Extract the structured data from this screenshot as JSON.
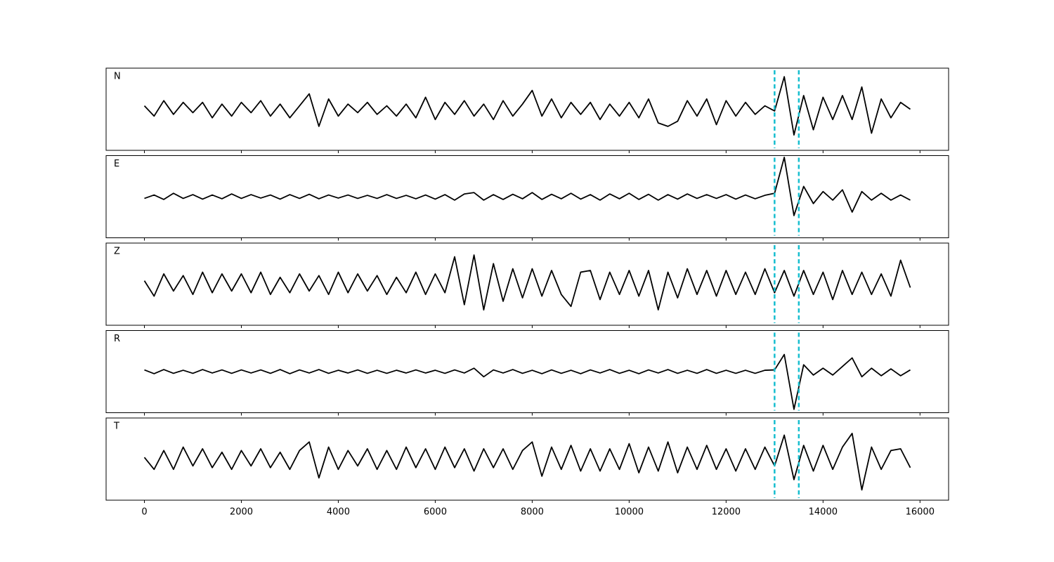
{
  "chart_data": {
    "type": "line",
    "x": [
      0,
      200,
      400,
      600,
      800,
      1000,
      1200,
      1400,
      1600,
      1800,
      2000,
      2200,
      2400,
      2600,
      2800,
      3000,
      3200,
      3400,
      3600,
      3800,
      4000,
      4200,
      4400,
      4600,
      4800,
      5000,
      5200,
      5400,
      5600,
      5800,
      6000,
      6200,
      6400,
      6600,
      6800,
      7000,
      7200,
      7400,
      7600,
      7800,
      8000,
      8200,
      8400,
      8600,
      8800,
      9000,
      9200,
      9400,
      9600,
      9800,
      10000,
      10200,
      10400,
      10600,
      10800,
      11000,
      11200,
      11400,
      11600,
      11800,
      12000,
      12200,
      12400,
      12600,
      12800,
      13000,
      13200,
      13400,
      13600,
      13800,
      14000,
      14200,
      14400,
      14600,
      14800,
      15000,
      15200,
      15400,
      15600,
      15800
    ],
    "xlim": [
      -790,
      16590
    ],
    "xticks": [
      0,
      2000,
      4000,
      6000,
      8000,
      10000,
      12000,
      14000,
      16000
    ],
    "ylim": [
      -1.2,
      1.2
    ],
    "markers": {
      "x": [
        13000,
        13500
      ],
      "color": "#17becf"
    },
    "series": [
      {
        "name": "N",
        "color": "#000000",
        "values": [
          0.1,
          -0.2,
          0.25,
          -0.15,
          0.2,
          -0.1,
          0.2,
          -0.25,
          0.15,
          -0.2,
          0.2,
          -0.1,
          0.25,
          -0.2,
          0.15,
          -0.25,
          0.1,
          0.45,
          -0.5,
          0.3,
          -0.2,
          0.15,
          -0.1,
          0.2,
          -0.15,
          0.1,
          -0.2,
          0.15,
          -0.25,
          0.35,
          -0.3,
          0.2,
          -0.15,
          0.25,
          -0.2,
          0.15,
          -0.3,
          0.25,
          -0.2,
          0.15,
          0.55,
          -0.2,
          0.3,
          -0.25,
          0.2,
          -0.15,
          0.2,
          -0.3,
          0.15,
          -0.2,
          0.2,
          -0.25,
          0.3,
          -0.4,
          -0.5,
          -0.35,
          0.25,
          -0.2,
          0.3,
          -0.45,
          0.25,
          -0.2,
          0.2,
          -0.15,
          0.1,
          -0.05,
          0.95,
          -0.75,
          0.4,
          -0.6,
          0.35,
          -0.3,
          0.4,
          -0.3,
          0.65,
          -0.7,
          0.3,
          -0.25,
          0.2,
          0.0
        ]
      },
      {
        "name": "E",
        "color": "#000000",
        "values": [
          -0.05,
          0.05,
          -0.08,
          0.1,
          -0.05,
          0.06,
          -0.07,
          0.05,
          -0.06,
          0.08,
          -0.05,
          0.06,
          -0.04,
          0.05,
          -0.07,
          0.06,
          -0.05,
          0.07,
          -0.06,
          0.05,
          -0.04,
          0.05,
          -0.05,
          0.04,
          -0.05,
          0.06,
          -0.05,
          0.04,
          -0.06,
          0.05,
          -0.07,
          0.06,
          -0.1,
          0.08,
          0.12,
          -0.1,
          0.06,
          -0.08,
          0.07,
          -0.06,
          0.12,
          -0.08,
          0.07,
          -0.06,
          0.1,
          -0.07,
          0.06,
          -0.1,
          0.08,
          -0.06,
          0.1,
          -0.08,
          0.07,
          -0.1,
          0.06,
          -0.07,
          0.08,
          -0.05,
          0.06,
          -0.05,
          0.06,
          -0.07,
          0.05,
          -0.06,
          0.04,
          0.1,
          1.15,
          -0.55,
          0.3,
          -0.2,
          0.15,
          -0.1,
          0.2,
          -0.45,
          0.15,
          -0.1,
          0.1,
          -0.1,
          0.05,
          -0.1
        ]
      },
      {
        "name": "Z",
        "color": "#000000",
        "values": [
          0.1,
          -0.35,
          0.3,
          -0.2,
          0.25,
          -0.3,
          0.35,
          -0.25,
          0.3,
          -0.2,
          0.3,
          -0.25,
          0.35,
          -0.3,
          0.2,
          -0.25,
          0.3,
          -0.2,
          0.25,
          -0.3,
          0.35,
          -0.25,
          0.3,
          -0.2,
          0.25,
          -0.3,
          0.2,
          -0.25,
          0.35,
          -0.3,
          0.3,
          -0.25,
          0.8,
          -0.6,
          0.85,
          -0.75,
          0.6,
          -0.5,
          0.45,
          -0.4,
          0.45,
          -0.35,
          0.4,
          -0.3,
          -0.65,
          0.35,
          0.4,
          -0.45,
          0.35,
          -0.3,
          0.4,
          -0.35,
          0.4,
          -0.75,
          0.35,
          -0.4,
          0.45,
          -0.3,
          0.4,
          -0.35,
          0.4,
          -0.3,
          0.35,
          -0.3,
          0.45,
          -0.25,
          0.4,
          -0.35,
          0.4,
          -0.3,
          0.35,
          -0.45,
          0.4,
          -0.3,
          0.35,
          -0.3,
          0.3,
          -0.35,
          0.7,
          -0.1
        ]
      },
      {
        "name": "R",
        "color": "#000000",
        "values": [
          0.05,
          -0.06,
          0.06,
          -0.05,
          0.04,
          -0.05,
          0.06,
          -0.04,
          0.05,
          -0.05,
          0.05,
          -0.04,
          0.05,
          -0.05,
          0.06,
          -0.06,
          0.05,
          -0.04,
          0.06,
          -0.05,
          0.04,
          -0.04,
          0.05,
          -0.05,
          0.04,
          -0.05,
          0.04,
          -0.04,
          0.05,
          -0.04,
          0.04,
          -0.05,
          0.05,
          -0.04,
          0.1,
          -0.15,
          0.05,
          -0.04,
          0.06,
          -0.05,
          0.04,
          -0.06,
          0.05,
          -0.05,
          0.04,
          -0.06,
          0.05,
          -0.04,
          0.06,
          -0.05,
          0.04,
          -0.06,
          0.05,
          -0.04,
          0.06,
          -0.05,
          0.04,
          -0.05,
          0.06,
          -0.05,
          0.04,
          -0.05,
          0.04,
          -0.05,
          0.04,
          0.05,
          0.5,
          -1.1,
          0.2,
          -0.1,
          0.1,
          -0.1,
          0.15,
          0.4,
          -0.15,
          0.1,
          -0.12,
          0.08,
          -0.12,
          0.05
        ]
      },
      {
        "name": "T",
        "color": "#000000",
        "values": [
          0.05,
          -0.3,
          0.25,
          -0.3,
          0.35,
          -0.2,
          0.3,
          -0.25,
          0.2,
          -0.3,
          0.25,
          -0.2,
          0.3,
          -0.25,
          0.2,
          -0.3,
          0.25,
          0.5,
          -0.55,
          0.35,
          -0.3,
          0.25,
          -0.2,
          0.3,
          -0.3,
          0.25,
          -0.3,
          0.35,
          -0.25,
          0.3,
          -0.3,
          0.35,
          -0.25,
          0.3,
          -0.35,
          0.3,
          -0.25,
          0.3,
          -0.3,
          0.25,
          0.5,
          -0.5,
          0.35,
          -0.3,
          0.4,
          -0.35,
          0.3,
          -0.35,
          0.3,
          -0.3,
          0.45,
          -0.4,
          0.35,
          -0.35,
          0.5,
          -0.4,
          0.35,
          -0.3,
          0.4,
          -0.3,
          0.3,
          -0.35,
          0.3,
          -0.3,
          0.35,
          -0.2,
          0.7,
          -0.6,
          0.4,
          -0.35,
          0.4,
          -0.3,
          0.35,
          0.75,
          -0.9,
          0.35,
          -0.3,
          0.25,
          0.3,
          -0.25
        ]
      }
    ]
  }
}
